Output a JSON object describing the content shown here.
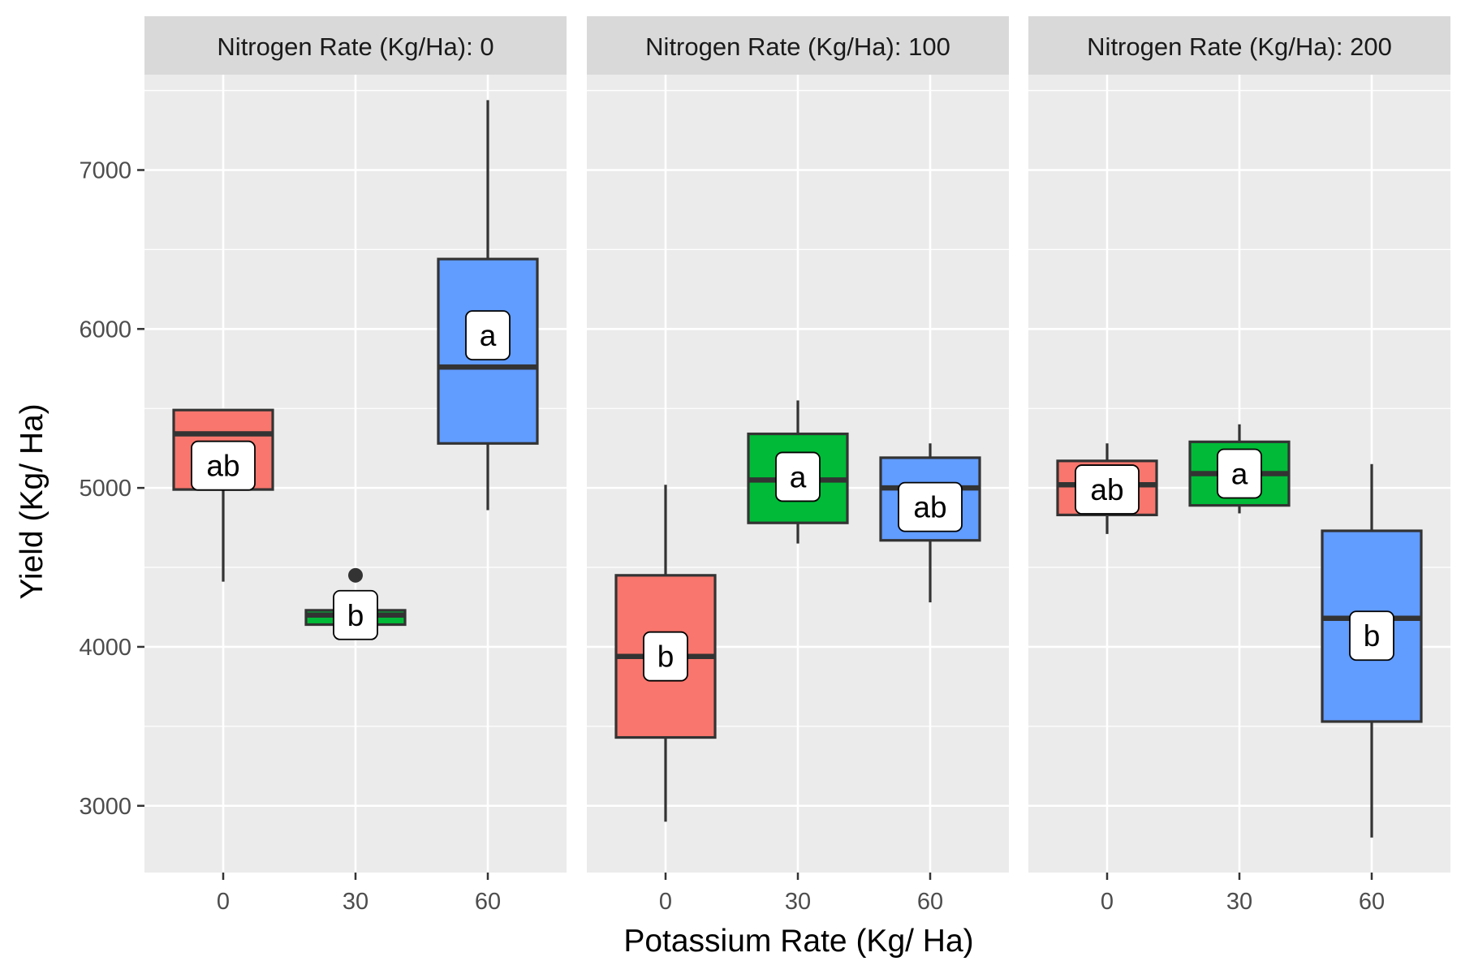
{
  "chart_data": {
    "type": "boxplot",
    "xlabel": "Potassium Rate (Kg/ Ha)",
    "ylabel": "Yield (Kg/ Ha)",
    "ylim": [
      2580,
      7600
    ],
    "y_ticks": [
      3000,
      4000,
      5000,
      6000,
      7000
    ],
    "x_categories": [
      "0",
      "30",
      "60"
    ],
    "grid": true,
    "legend": "none",
    "colors": {
      "0": "#F8766D",
      "30": "#00BA38",
      "60": "#619CFF"
    },
    "panels": [
      {
        "title": "Nitrogen Rate (Kg/Ha): 0",
        "boxes": [
          {
            "x": "0",
            "min": 4410,
            "q1": 4990,
            "median": 5340,
            "q3": 5490,
            "max": 5490,
            "outliers": [],
            "letter": "ab",
            "letter_y": 5140
          },
          {
            "x": "30",
            "min": 4140,
            "q1": 4140,
            "median": 4200,
            "q3": 4230,
            "max": 4230,
            "outliers": [
              4450
            ],
            "letter": "b",
            "letter_y": 4200
          },
          {
            "x": "60",
            "min": 4860,
            "q1": 5280,
            "median": 5760,
            "q3": 6440,
            "max": 7440,
            "outliers": [],
            "letter": "a",
            "letter_y": 5960
          }
        ]
      },
      {
        "title": "Nitrogen Rate (Kg/Ha): 100",
        "boxes": [
          {
            "x": "0",
            "min": 2900,
            "q1": 3430,
            "median": 3940,
            "q3": 4450,
            "max": 5020,
            "outliers": [],
            "letter": "b",
            "letter_y": 3940
          },
          {
            "x": "30",
            "min": 4650,
            "q1": 4780,
            "median": 5050,
            "q3": 5340,
            "max": 5550,
            "outliers": [],
            "letter": "a",
            "letter_y": 5070
          },
          {
            "x": "60",
            "min": 4280,
            "q1": 4670,
            "median": 5000,
            "q3": 5190,
            "max": 5280,
            "outliers": [],
            "letter": "ab",
            "letter_y": 4880
          }
        ]
      },
      {
        "title": "Nitrogen Rate (Kg/Ha): 200",
        "boxes": [
          {
            "x": "0",
            "min": 4710,
            "q1": 4830,
            "median": 5020,
            "q3": 5170,
            "max": 5280,
            "outliers": [],
            "letter": "ab",
            "letter_y": 4990
          },
          {
            "x": "30",
            "min": 4840,
            "q1": 4890,
            "median": 5090,
            "q3": 5290,
            "max": 5400,
            "outliers": [],
            "letter": "a",
            "letter_y": 5090
          },
          {
            "x": "60",
            "min": 2800,
            "q1": 3530,
            "median": 4180,
            "q3": 4730,
            "max": 5150,
            "outliers": [],
            "letter": "b",
            "letter_y": 4070
          }
        ]
      }
    ]
  }
}
